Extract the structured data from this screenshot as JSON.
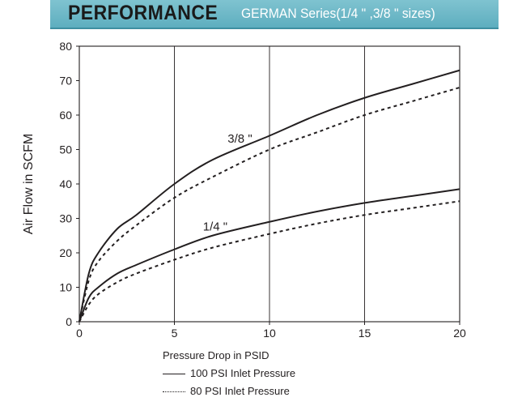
{
  "banner": {
    "title": "PERFORMANCE",
    "subtitle": "GERMAN  Series(1/4 \" ,3/8 \" sizes)",
    "background_color": "#6fb9c9"
  },
  "chart_data": {
    "type": "line",
    "xlabel": "Pressure Drop in PSID",
    "ylabel": "Air Flow in SCFM",
    "xlim": [
      0,
      20
    ],
    "ylim": [
      0,
      80
    ],
    "xticks": [
      0,
      5,
      10,
      15,
      20
    ],
    "yticks": [
      0,
      10,
      20,
      30,
      40,
      50,
      60,
      70,
      80
    ],
    "grid": "vertical",
    "series": [
      {
        "name": "100 PSI Inlet Pressure",
        "group": "3/8 \"",
        "style": "solid",
        "x": [
          0,
          0.5,
          1,
          2,
          3,
          5,
          7,
          10,
          12.5,
          15,
          17.5,
          20
        ],
        "y": [
          0,
          14,
          20,
          27,
          31,
          40,
          47,
          54,
          60,
          65,
          69,
          73
        ]
      },
      {
        "name": "80 PSI Inlet Pressure",
        "group": "3/8 \"",
        "style": "dotted",
        "x": [
          0,
          0.5,
          1,
          2,
          3,
          5,
          7,
          10,
          12.5,
          15,
          17.5,
          20
        ],
        "y": [
          0,
          12,
          17.5,
          23.5,
          28,
          36,
          42,
          50,
          55,
          60,
          64,
          68
        ]
      },
      {
        "name": "100 PSI Inlet Pressure",
        "group": "1/4 \"",
        "style": "solid",
        "x": [
          0,
          0.5,
          1,
          2,
          3,
          5,
          7,
          10,
          12.5,
          15,
          17.5,
          20
        ],
        "y": [
          0,
          7,
          10,
          14,
          16.5,
          21,
          25,
          29,
          32,
          34.5,
          36.5,
          38.5
        ]
      },
      {
        "name": "80 PSI Inlet Pressure",
        "group": "1/4 \"",
        "style": "dotted",
        "x": [
          0,
          0.5,
          1,
          2,
          3,
          5,
          7,
          10,
          12.5,
          15,
          17.5,
          20
        ],
        "y": [
          0,
          5,
          8,
          11.5,
          14,
          18,
          21.5,
          25.5,
          28.5,
          31,
          33,
          35
        ]
      }
    ],
    "annotations": [
      {
        "text": "3/8 \"",
        "x": 7.8,
        "y": 52
      },
      {
        "text": "1/4 \"",
        "x": 6.5,
        "y": 26.5
      }
    ]
  },
  "legend": {
    "solid_label": "100 PSI Inlet Pressure",
    "dotted_label": "80 PSI Inlet Pressure"
  }
}
